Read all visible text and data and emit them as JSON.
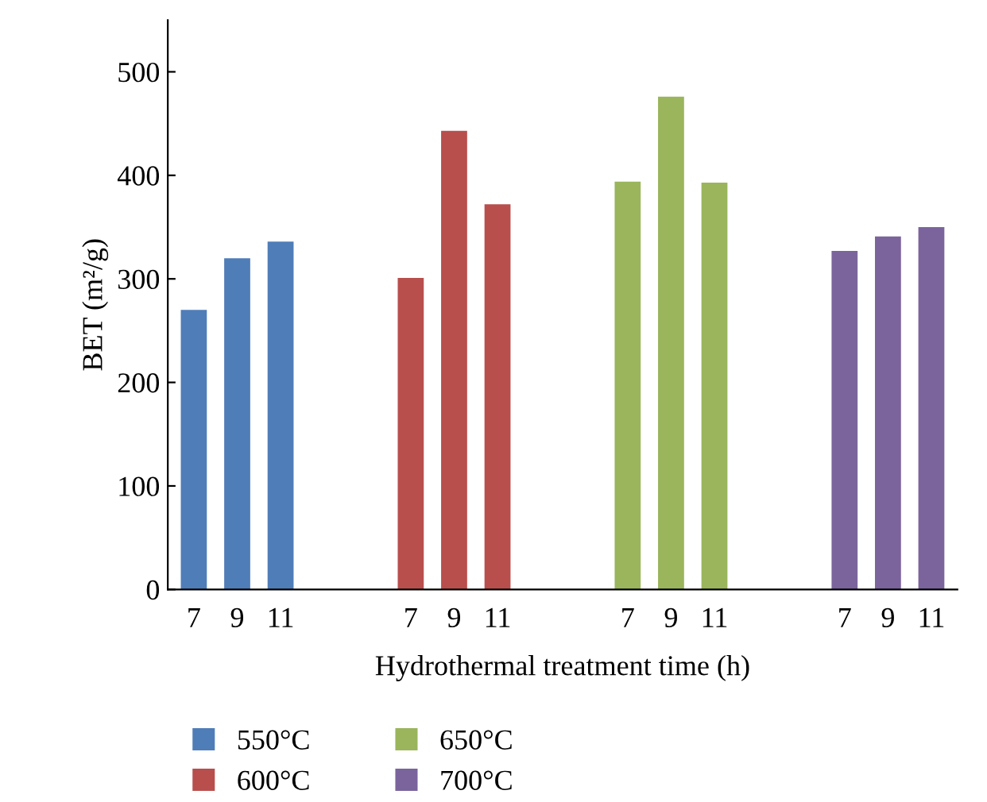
{
  "chart_data": {
    "type": "bar",
    "xlabel": "Hydrothermal treatment time (h)",
    "ylabel": "BET (m²/g)",
    "categories": [
      "7",
      "9",
      "11",
      null,
      null,
      "7",
      "9",
      "11",
      null,
      null,
      "7",
      "9",
      "11",
      null,
      null,
      "7",
      "9",
      "11"
    ],
    "series": [
      {
        "name": "550°C",
        "color": "#4f7db8",
        "values": [
          270,
          320,
          336,
          null,
          null,
          null,
          null,
          null,
          null,
          null,
          null,
          null,
          null,
          null,
          null,
          null,
          null,
          null
        ]
      },
      {
        "name": "600°C",
        "color": "#b84f4d",
        "values": [
          null,
          null,
          null,
          null,
          null,
          301,
          443,
          372,
          null,
          null,
          null,
          null,
          null,
          null,
          null,
          null,
          null,
          null
        ]
      },
      {
        "name": "650°C",
        "color": "#9ab55c",
        "values": [
          null,
          null,
          null,
          null,
          null,
          null,
          null,
          null,
          null,
          null,
          394,
          476,
          393,
          null,
          null,
          null,
          null,
          null
        ]
      },
      {
        "name": "700°C",
        "color": "#7b649c",
        "values": [
          null,
          null,
          null,
          null,
          null,
          null,
          null,
          null,
          null,
          null,
          null,
          null,
          null,
          null,
          null,
          327,
          341,
          350
        ]
      }
    ],
    "ylim": [
      0,
      550
    ],
    "yticks": [
      0,
      100,
      200,
      300,
      400,
      500
    ],
    "grid": false,
    "legend": "bottom"
  }
}
